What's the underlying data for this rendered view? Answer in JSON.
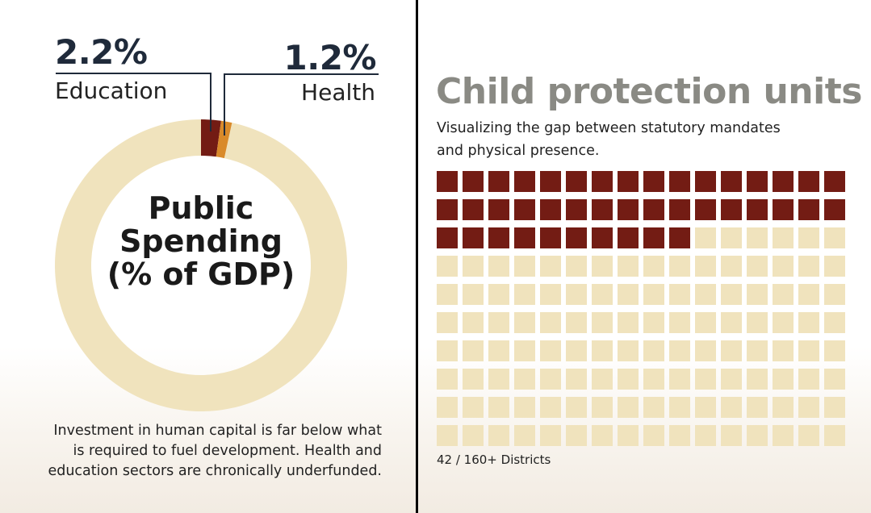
{
  "chart_data": [
    {
      "type": "pie",
      "subtype": "donut",
      "title": "Public Spending (% of GDP)",
      "title_lines": [
        "Public",
        "Spending",
        "(% of GDP)"
      ],
      "total": 100,
      "unit": "% of GDP",
      "series": [
        {
          "name": "Education",
          "value": 2.2,
          "label": "2.2%",
          "color": "#731c14"
        },
        {
          "name": "Health",
          "value": 1.2,
          "label": "1.2%",
          "color": "#d98a2a"
        }
      ],
      "remainder_color": "#f0e3bd",
      "description": [
        "Investment in human capital is far below what",
        "is required to fuel development. Health and",
        "education sectors are chronically underfunded."
      ]
    },
    {
      "type": "waffle",
      "title": "Child protection units",
      "subtitle_lines": [
        "Visualizing the gap between statutory mandates",
        "and physical presence."
      ],
      "filled": 42,
      "total": 160,
      "columns": 16,
      "rows": 10,
      "filled_color": "#731c14",
      "empty_color": "#f0e3bd",
      "caption": "42 / 160+ Districts"
    }
  ],
  "colors": {
    "divider": "#000000",
    "value_text": "#1f2a3a",
    "title_gray": "#8a8a84"
  }
}
